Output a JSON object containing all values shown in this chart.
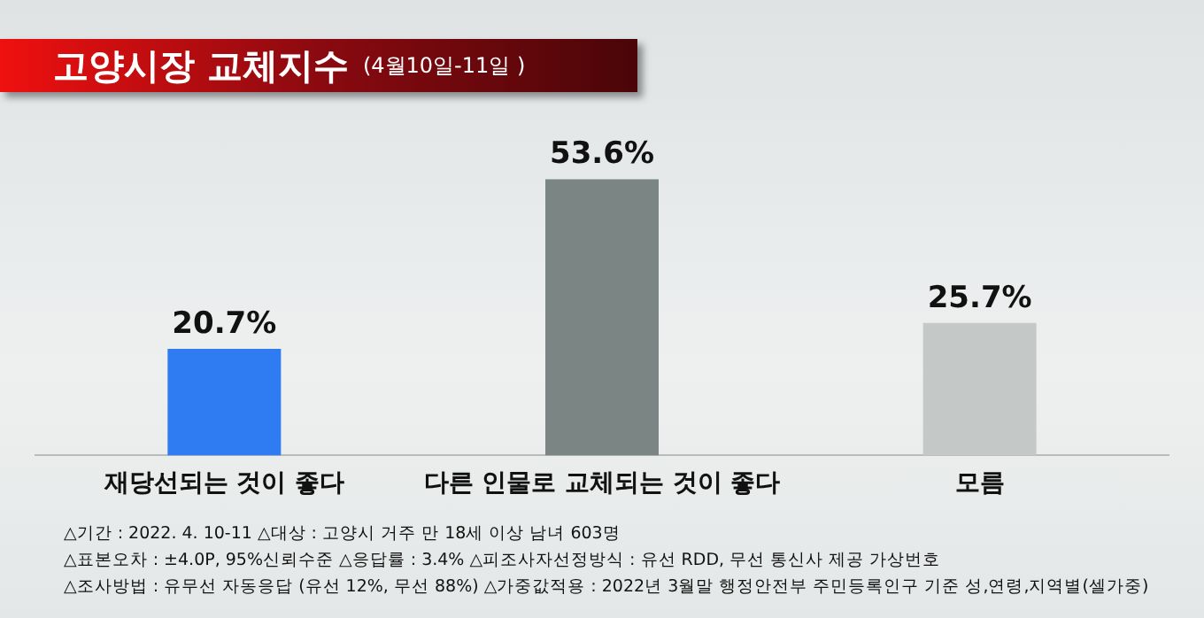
{
  "chart_data": {
    "type": "bar",
    "title": "고양시장 교체지수",
    "subtitle": "(4월10일-11일 )",
    "categories": [
      "재당선되는 것이 좋다",
      "다른 인물로 교체되는 것이 좋다",
      "모름"
    ],
    "values": [
      20.7,
      53.6,
      25.7
    ],
    "colors": [
      "#2f7cf2",
      "#7b8583",
      "#c4c9c7"
    ],
    "data_labels": true,
    "value_labels": [
      "20.7%",
      "53.6%",
      "25.7%"
    ],
    "grid": false,
    "legend": false,
    "annotations": [
      "△기간 : 2022. 4. 10-11   △대상 : 고양시 거주 만 18세 이상 남녀 603명",
      "△표본오차 : ±4.0P, 95%신뢰수준   △응답률 : 3.4%   △피조사자선정방식 : 유선 RDD, 무선 통신사 제공 가상번호",
      "△조사방법 : 유무선 자동응답 (유선 12%, 무선 88%)   △가중값적용 : 2022년 3월말 행정안전부 주민등록인구 기준 성,연령,지역별(셀가중)"
    ]
  }
}
